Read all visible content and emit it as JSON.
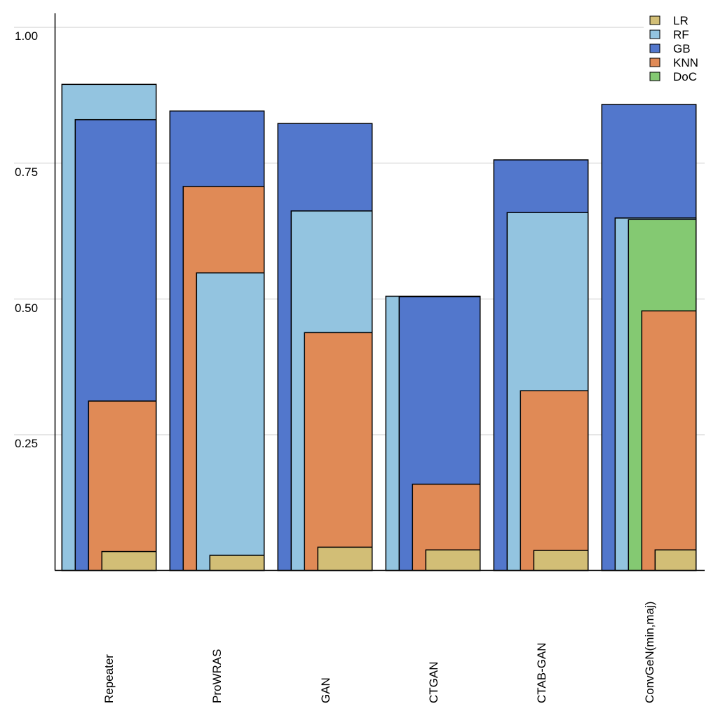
{
  "chart_data": {
    "type": "bar",
    "title": "",
    "xlabel": "",
    "ylabel": "",
    "ylim": [
      0,
      1.0
    ],
    "yticks": [
      "0.25",
      "0.50",
      "0.75",
      "1.00"
    ],
    "ytick_values": [
      0.25,
      0.5,
      0.75,
      1.0
    ],
    "grid": true,
    "legend_position": "top-right",
    "bar_style": "overlapping, sorted by value descending, each subsequent bar offset to the right",
    "categories": [
      "Repeater",
      "ProWRAS",
      "GAN",
      "CTGAN",
      "CTAB-GAN",
      "ConvGeN(min,maj)"
    ],
    "series": [
      {
        "name": "LR",
        "color": "#d2be76",
        "values": [
          0.035,
          0.028,
          0.043,
          0.038,
          0.037,
          0.038
        ]
      },
      {
        "name": "RF",
        "color": "#93c4e0",
        "values": [
          0.895,
          0.548,
          0.662,
          0.505,
          0.659,
          0.649
        ]
      },
      {
        "name": "GB",
        "color": "#5277cc",
        "values": [
          0.83,
          0.846,
          0.823,
          0.504,
          0.756,
          0.858
        ]
      },
      {
        "name": "KNN",
        "color": "#e08a56",
        "values": [
          0.312,
          0.707,
          0.438,
          0.159,
          0.331,
          0.478
        ]
      },
      {
        "name": "DoC",
        "color": "#84c972",
        "values": [
          null,
          null,
          null,
          null,
          null,
          0.646
        ]
      }
    ]
  }
}
